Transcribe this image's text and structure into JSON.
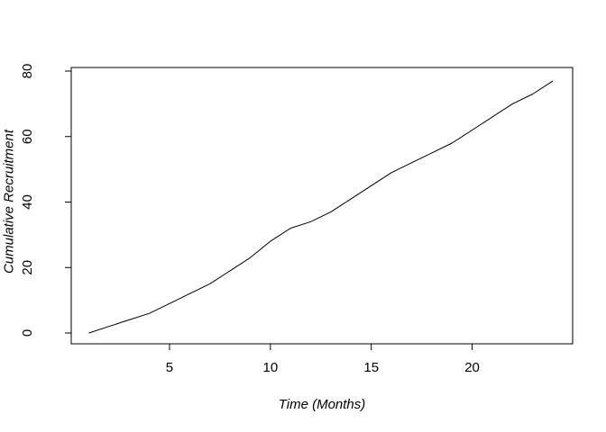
{
  "figure": {
    "background_color": "#ffffff",
    "axis_color": "#000000"
  },
  "chart_data": {
    "type": "line",
    "title": "",
    "xlabel": "Time (Months)",
    "ylabel": "Cumulative Recruitment",
    "x": [
      1,
      2,
      3,
      4,
      5,
      6,
      7,
      8,
      9,
      10,
      11,
      12,
      13,
      14,
      15,
      16,
      17,
      18,
      19,
      20,
      21,
      22,
      23,
      24
    ],
    "values": [
      0,
      2,
      4,
      6,
      9,
      12,
      15,
      19,
      23,
      28,
      32,
      34,
      37,
      41,
      45,
      49,
      52,
      55,
      58,
      62,
      66,
      70,
      73,
      77
    ],
    "series_name": "Cumulative Recruitment",
    "x_ticks": [
      5,
      10,
      15,
      20
    ],
    "y_ticks": [
      0,
      20,
      40,
      60,
      80
    ],
    "xlim": [
      0.13,
      24.98
    ],
    "ylim": [
      -3.3,
      81.1
    ],
    "grid": false,
    "legend": "none",
    "line_color": "#000000",
    "line_width": 1
  }
}
